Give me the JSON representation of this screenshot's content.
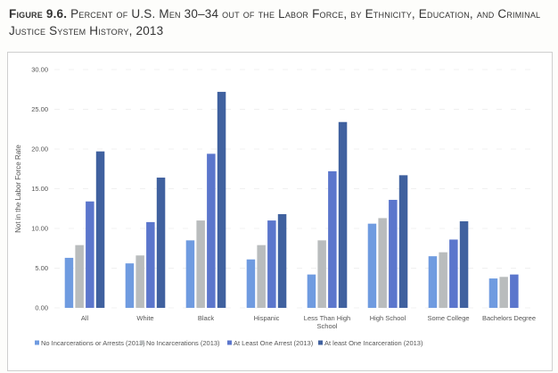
{
  "figure": {
    "number": "Figure 9.6.",
    "title": "Percent of U.S. Men 30–34 out of the Labor Force, by Ethnicity, Education, and Criminal Justice System History, 2013"
  },
  "chart_data": {
    "type": "bar",
    "title": "Percent of U.S. Men 30–34 out of the Labor Force, by Ethnicity, Education, and Criminal Justice System History, 2013",
    "xlabel": "",
    "ylabel": "Not in the Labor Force Rate",
    "ylim": [
      0,
      30
    ],
    "yticks": [
      "0.00",
      "5.00",
      "10.00",
      "15.00",
      "20.00",
      "25.00",
      "30.00"
    ],
    "ytick_values": [
      0,
      5,
      10,
      15,
      20,
      25,
      30
    ],
    "grid": true,
    "legend_position": "bottom",
    "categories": [
      [
        "All"
      ],
      [
        "White"
      ],
      [
        "Black"
      ],
      [
        "Hispanic"
      ],
      [
        "Less Than High",
        "School"
      ],
      [
        "High School"
      ],
      [
        "Some College"
      ],
      [
        "Bachelors Degree"
      ]
    ],
    "series": [
      {
        "name": "No Incarcerations or Arrests (2013)",
        "color": "#6f9be0",
        "values": [
          6.3,
          5.6,
          8.5,
          6.1,
          4.2,
          10.6,
          6.5,
          3.7
        ]
      },
      {
        "name": "No Incarcerations (2013)",
        "color": "#b9bcbd",
        "values": [
          7.9,
          6.6,
          11.0,
          7.9,
          8.5,
          11.3,
          7.0,
          3.9
        ]
      },
      {
        "name": "At Least One Arrest (2013)",
        "color": "#5b76cc",
        "values": [
          13.4,
          10.8,
          19.4,
          11.0,
          17.2,
          13.6,
          8.6,
          4.2
        ]
      },
      {
        "name": "At least One Incarceration (2013)",
        "color": "#40619f",
        "values": [
          19.7,
          16.4,
          27.2,
          11.8,
          23.4,
          16.7,
          10.9,
          null
        ]
      }
    ]
  }
}
